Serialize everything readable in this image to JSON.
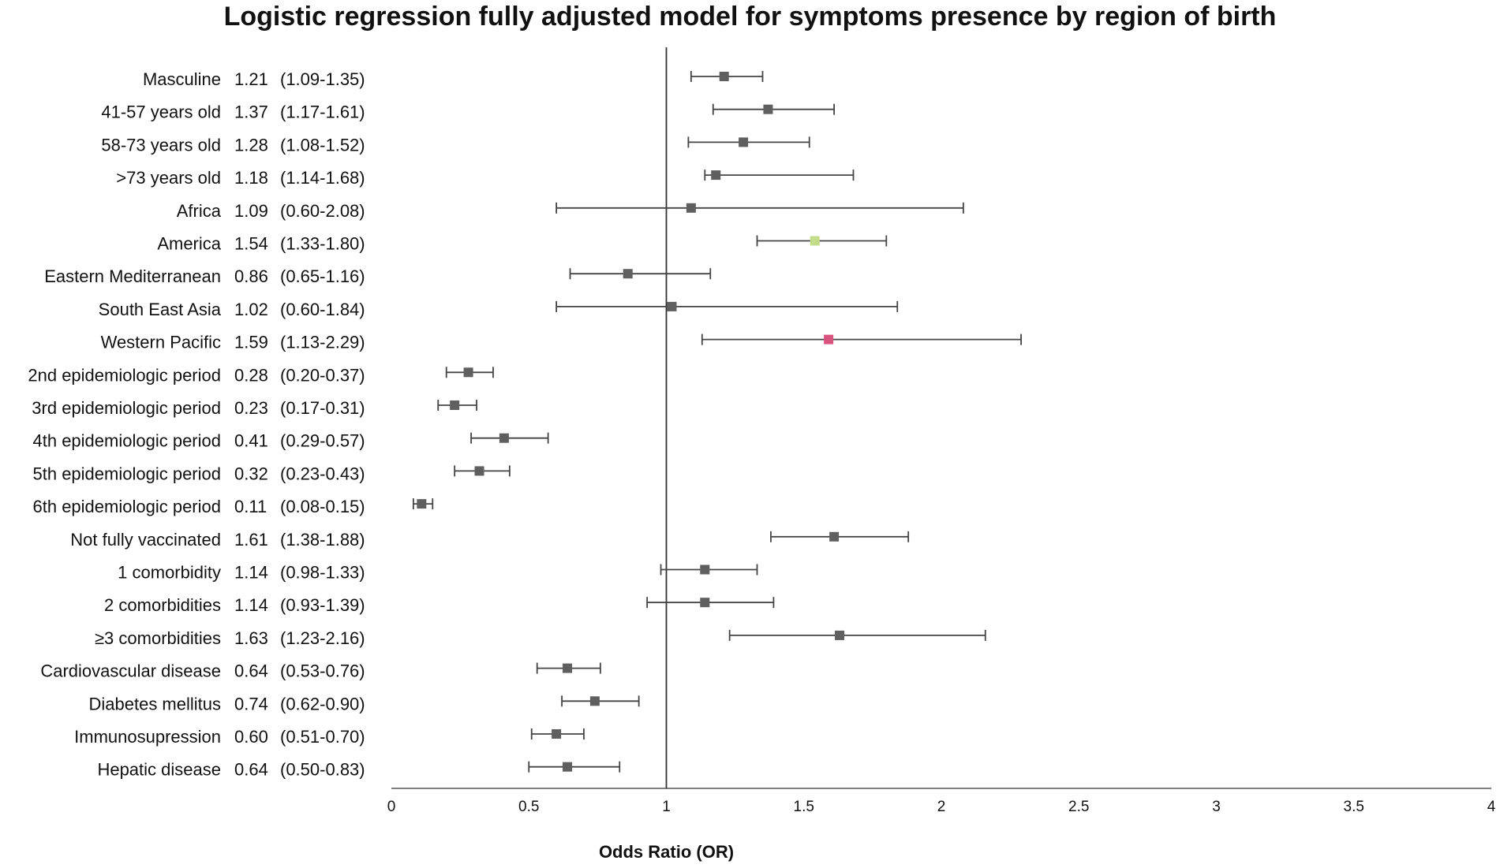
{
  "chart_data": {
    "type": "forest",
    "title": "Logistic regression fully adjusted model for symptoms presence by region of birth",
    "xlabel": "Odds Ratio (OR)",
    "xlim": [
      0,
      4
    ],
    "x_ticks": [
      0,
      0.5,
      1,
      1.5,
      2,
      2.5,
      3,
      3.5,
      4
    ],
    "x_tick_labels": [
      "0",
      "0.5",
      "1",
      "1.5",
      "2",
      "2.5",
      "3",
      "3.5",
      "4"
    ],
    "reference_line": 1,
    "colors": {
      "default": "#5f5f5f",
      "america": "#c2dc8a",
      "western_pacific": "#d9537f",
      "line": "#444444"
    },
    "rows": [
      {
        "label": "Masculine",
        "or": 1.21,
        "lo": 1.09,
        "hi": 1.35,
        "or_text": "1.21",
        "ci_text": "(1.09-1.35)",
        "color": "default"
      },
      {
        "label": "41-57 years old",
        "or": 1.37,
        "lo": 1.17,
        "hi": 1.61,
        "or_text": "1.37",
        "ci_text": "(1.17-1.61)",
        "color": "default"
      },
      {
        "label": "58-73 years old",
        "or": 1.28,
        "lo": 1.08,
        "hi": 1.52,
        "or_text": "1.28",
        "ci_text": "(1.08-1.52)",
        "color": "default"
      },
      {
        "label": ">73 years old",
        "or": 1.18,
        "lo": 1.14,
        "hi": 1.68,
        "or_text": "1.18",
        "ci_text": "(1.14-1.68)",
        "color": "default"
      },
      {
        "label": "Africa",
        "or": 1.09,
        "lo": 0.6,
        "hi": 2.08,
        "or_text": "1.09",
        "ci_text": "(0.60-2.08)",
        "color": "default"
      },
      {
        "label": "America",
        "or": 1.54,
        "lo": 1.33,
        "hi": 1.8,
        "or_text": "1.54",
        "ci_text": "(1.33-1.80)",
        "color": "america"
      },
      {
        "label": "Eastern Mediterranean",
        "or": 0.86,
        "lo": 0.65,
        "hi": 1.16,
        "or_text": "0.86",
        "ci_text": "(0.65-1.16)",
        "color": "default"
      },
      {
        "label": "South East Asia",
        "or": 1.02,
        "lo": 0.6,
        "hi": 1.84,
        "or_text": "1.02",
        "ci_text": "(0.60-1.84)",
        "color": "default"
      },
      {
        "label": "Western Pacific",
        "or": 1.59,
        "lo": 1.13,
        "hi": 2.29,
        "or_text": "1.59",
        "ci_text": "(1.13-2.29)",
        "color": "western_pacific"
      },
      {
        "label": "2nd epidemiologic period",
        "or": 0.28,
        "lo": 0.2,
        "hi": 0.37,
        "or_text": "0.28",
        "ci_text": "(0.20-0.37)",
        "color": "default"
      },
      {
        "label": "3rd epidemiologic period",
        "or": 0.23,
        "lo": 0.17,
        "hi": 0.31,
        "or_text": "0.23",
        "ci_text": "(0.17-0.31)",
        "color": "default"
      },
      {
        "label": "4th epidemiologic period",
        "or": 0.41,
        "lo": 0.29,
        "hi": 0.57,
        "or_text": "0.41",
        "ci_text": "(0.29-0.57)",
        "color": "default"
      },
      {
        "label": "5th epidemiologic period",
        "or": 0.32,
        "lo": 0.23,
        "hi": 0.43,
        "or_text": "0.32",
        "ci_text": "(0.23-0.43)",
        "color": "default"
      },
      {
        "label": "6th epidemiologic period",
        "or": 0.11,
        "lo": 0.08,
        "hi": 0.15,
        "or_text": "0.11",
        "ci_text": "(0.08-0.15)",
        "color": "default"
      },
      {
        "label": "Not fully vaccinated",
        "or": 1.61,
        "lo": 1.38,
        "hi": 1.88,
        "or_text": "1.61",
        "ci_text": "(1.38-1.88)",
        "color": "default"
      },
      {
        "label": "1 comorbidity",
        "or": 1.14,
        "lo": 0.98,
        "hi": 1.33,
        "or_text": "1.14",
        "ci_text": "(0.98-1.33)",
        "color": "default"
      },
      {
        "label": "2 comorbidities",
        "or": 1.14,
        "lo": 0.93,
        "hi": 1.39,
        "or_text": "1.14",
        "ci_text": "(0.93-1.39)",
        "color": "default"
      },
      {
        "label": "≥3 comorbidities",
        "or": 1.63,
        "lo": 1.23,
        "hi": 2.16,
        "or_text": "1.63",
        "ci_text": "(1.23-2.16)",
        "color": "default"
      },
      {
        "label": "Cardiovascular disease",
        "or": 0.64,
        "lo": 0.53,
        "hi": 0.76,
        "or_text": "0.64",
        "ci_text": "(0.53-0.76)",
        "color": "default"
      },
      {
        "label": "Diabetes mellitus",
        "or": 0.74,
        "lo": 0.62,
        "hi": 0.9,
        "or_text": "0.74",
        "ci_text": "(0.62-0.90)",
        "color": "default"
      },
      {
        "label": "Immunosupression",
        "or": 0.6,
        "lo": 0.51,
        "hi": 0.7,
        "or_text": "0.60",
        "ci_text": "(0.51-0.70)",
        "color": "default"
      },
      {
        "label": "Hepatic disease",
        "or": 0.64,
        "lo": 0.5,
        "hi": 0.83,
        "or_text": "0.64",
        "ci_text": "(0.50-0.83)",
        "color": "default"
      }
    ]
  }
}
